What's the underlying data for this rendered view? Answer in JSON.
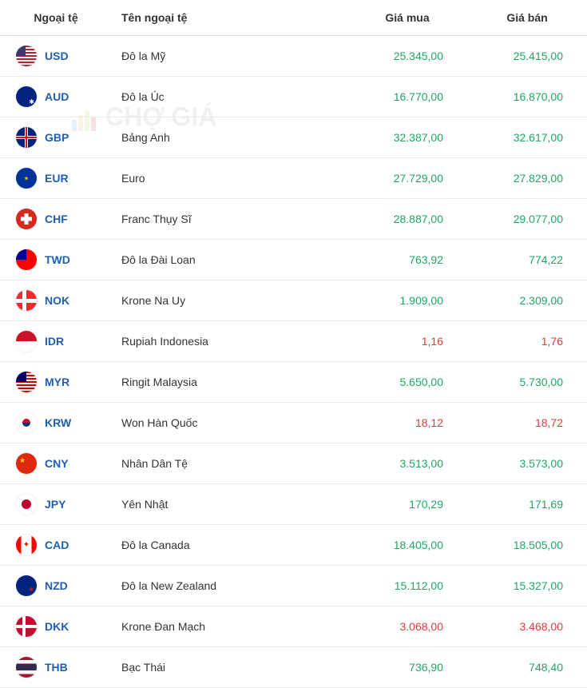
{
  "watermark": {
    "text": "CHỢ GIÁ"
  },
  "headers": {
    "currency": "Ngoại tệ",
    "name": "Tên ngoại tệ",
    "buy": "Giá mua",
    "sell": "Giá bán"
  },
  "colors": {
    "link": "#1e5fb3",
    "up": "#1fa864",
    "down": "#e23b3b",
    "border": "#eaeaea",
    "background": "#ffffff"
  },
  "rows": [
    {
      "code": "USD",
      "flag": "flag-usd",
      "name": "Đô la Mỹ",
      "buy": "25.345,00",
      "sell": "25.415,00",
      "buy_color": "green",
      "sell_color": "green"
    },
    {
      "code": "AUD",
      "flag": "flag-aud",
      "name": "Đô la Úc",
      "buy": "16.770,00",
      "sell": "16.870,00",
      "buy_color": "green",
      "sell_color": "green"
    },
    {
      "code": "GBP",
      "flag": "flag-gbp",
      "name": "Bảng Anh",
      "buy": "32.387,00",
      "sell": "32.617,00",
      "buy_color": "green",
      "sell_color": "green"
    },
    {
      "code": "EUR",
      "flag": "flag-eur",
      "name": "Euro",
      "buy": "27.729,00",
      "sell": "27.829,00",
      "buy_color": "green",
      "sell_color": "green"
    },
    {
      "code": "CHF",
      "flag": "flag-chf",
      "name": "Franc Thụy Sĩ",
      "buy": "28.887,00",
      "sell": "29.077,00",
      "buy_color": "green",
      "sell_color": "green"
    },
    {
      "code": "TWD",
      "flag": "flag-twd",
      "name": "Đô la Đài Loan",
      "buy": "763,92",
      "sell": "774,22",
      "buy_color": "green",
      "sell_color": "green"
    },
    {
      "code": "NOK",
      "flag": "flag-nok",
      "name": "Krone Na Uy",
      "buy": "1.909,00",
      "sell": "2.309,00",
      "buy_color": "green",
      "sell_color": "green"
    },
    {
      "code": "IDR",
      "flag": "flag-idr",
      "name": "Rupiah Indonesia",
      "buy": "1,16",
      "sell": "1,76",
      "buy_color": "red",
      "sell_color": "red"
    },
    {
      "code": "MYR",
      "flag": "flag-myr",
      "name": "Ringit Malaysia",
      "buy": "5.650,00",
      "sell": "5.730,00",
      "buy_color": "green",
      "sell_color": "green"
    },
    {
      "code": "KRW",
      "flag": "flag-krw",
      "name": "Won Hàn Quốc",
      "buy": "18,12",
      "sell": "18,72",
      "buy_color": "red",
      "sell_color": "red"
    },
    {
      "code": "CNY",
      "flag": "flag-cny",
      "name": "Nhân Dân Tệ",
      "buy": "3.513,00",
      "sell": "3.573,00",
      "buy_color": "green",
      "sell_color": "green"
    },
    {
      "code": "JPY",
      "flag": "flag-jpy",
      "name": "Yên Nhật",
      "buy": "170,29",
      "sell": "171,69",
      "buy_color": "green",
      "sell_color": "green"
    },
    {
      "code": "CAD",
      "flag": "flag-cad",
      "name": "Đô la Canada",
      "buy": "18.405,00",
      "sell": "18.505,00",
      "buy_color": "green",
      "sell_color": "green"
    },
    {
      "code": "NZD",
      "flag": "flag-nzd",
      "name": "Đô la New Zealand",
      "buy": "15.112,00",
      "sell": "15.327,00",
      "buy_color": "green",
      "sell_color": "green"
    },
    {
      "code": "DKK",
      "flag": "flag-dkk",
      "name": "Krone Đan Mạch",
      "buy": "3.068,00",
      "sell": "3.468,00",
      "buy_color": "red",
      "sell_color": "red"
    },
    {
      "code": "THB",
      "flag": "flag-thb",
      "name": "Bạc Thái",
      "buy": "736,90",
      "sell": "748,40",
      "buy_color": "green",
      "sell_color": "green"
    }
  ]
}
